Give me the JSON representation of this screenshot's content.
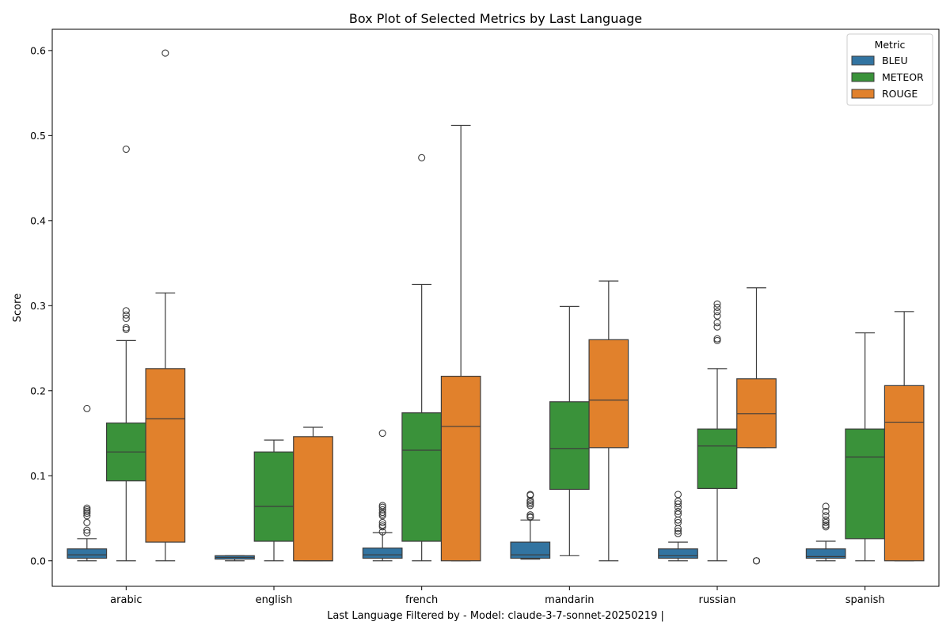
{
  "chart_data": {
    "type": "box",
    "title": "Box Plot of Selected Metrics by Last Language",
    "xlabel": "Last Language Filtered by - Model: claude-3-7-sonnet-20250219 |",
    "ylabel": "Score",
    "ylim": [
      -0.03,
      0.625
    ],
    "yticks": [
      "0.0",
      "0.1",
      "0.2",
      "0.3",
      "0.4",
      "0.5",
      "0.6"
    ],
    "grid": false,
    "legend": {
      "title": "Metric",
      "position": "top-right"
    },
    "categories": [
      "arabic",
      "english",
      "french",
      "mandarin",
      "russian",
      "spanish"
    ],
    "series": [
      {
        "name": "BLEU",
        "color": "#3274a1",
        "boxes": [
          {
            "whislo": 0.0,
            "q1": 0.003,
            "med": 0.007,
            "q3": 0.014,
            "whishi": 0.026,
            "fliers": [
              0.179,
              0.062,
              0.06,
              0.058,
              0.056,
              0.053,
              0.045,
              0.036,
              0.033
            ]
          },
          {
            "whislo": 0.0,
            "q1": 0.002,
            "med": 0.004,
            "q3": 0.006,
            "whishi": 0.006,
            "fliers": []
          },
          {
            "whislo": 0.0,
            "q1": 0.003,
            "med": 0.007,
            "q3": 0.015,
            "whishi": 0.033,
            "fliers": [
              0.15,
              0.065,
              0.063,
              0.06,
              0.057,
              0.055,
              0.053,
              0.045,
              0.042,
              0.04,
              0.034
            ]
          },
          {
            "whislo": 0.002,
            "q1": 0.003,
            "med": 0.007,
            "q3": 0.022,
            "whishi": 0.048,
            "fliers": [
              0.078,
              0.077,
              0.071,
              0.069,
              0.067,
              0.065,
              0.054,
              0.052,
              0.051
            ]
          },
          {
            "whislo": 0.0,
            "q1": 0.003,
            "med": 0.006,
            "q3": 0.014,
            "whishi": 0.022,
            "fliers": [
              0.078,
              0.07,
              0.067,
              0.063,
              0.058,
              0.055,
              0.048,
              0.045,
              0.038,
              0.035,
              0.032
            ]
          },
          {
            "whislo": 0.0,
            "q1": 0.003,
            "med": 0.005,
            "q3": 0.014,
            "whishi": 0.023,
            "fliers": [
              0.064,
              0.058,
              0.053,
              0.048,
              0.045,
              0.042,
              0.04
            ]
          }
        ]
      },
      {
        "name": "METEOR",
        "color": "#3a923a",
        "boxes": [
          {
            "whislo": 0.0,
            "q1": 0.094,
            "med": 0.128,
            "q3": 0.162,
            "whishi": 0.259,
            "fliers": [
              0.484,
              0.294,
              0.289,
              0.285,
              0.274,
              0.272
            ]
          },
          {
            "whislo": 0.0,
            "q1": 0.023,
            "med": 0.064,
            "q3": 0.128,
            "whishi": 0.142,
            "fliers": []
          },
          {
            "whislo": 0.0,
            "q1": 0.023,
            "med": 0.13,
            "q3": 0.174,
            "whishi": 0.325,
            "fliers": [
              0.474
            ]
          },
          {
            "whislo": 0.006,
            "q1": 0.084,
            "med": 0.132,
            "q3": 0.187,
            "whishi": 0.299,
            "fliers": []
          },
          {
            "whislo": 0.0,
            "q1": 0.085,
            "med": 0.135,
            "q3": 0.155,
            "whishi": 0.226,
            "fliers": [
              0.302,
              0.298,
              0.293,
              0.288,
              0.28,
              0.275,
              0.261,
              0.259
            ]
          },
          {
            "whislo": 0.0,
            "q1": 0.026,
            "med": 0.122,
            "q3": 0.155,
            "whishi": 0.268,
            "fliers": []
          }
        ]
      },
      {
        "name": "ROUGE",
        "color": "#e1812c",
        "boxes": [
          {
            "whislo": 0.0,
            "q1": 0.022,
            "med": 0.167,
            "q3": 0.226,
            "whishi": 0.315,
            "fliers": [
              0.597
            ]
          },
          {
            "whislo": 0.0,
            "q1": 0.0,
            "med": 0.0,
            "q3": 0.146,
            "whishi": 0.157,
            "fliers": []
          },
          {
            "whislo": 0.0,
            "q1": 0.0,
            "med": 0.158,
            "q3": 0.217,
            "whishi": 0.512,
            "fliers": []
          },
          {
            "whislo": 0.0,
            "q1": 0.133,
            "med": 0.189,
            "q3": 0.26,
            "whishi": 0.329,
            "fliers": []
          },
          {
            "whislo": 0.133,
            "q1": 0.133,
            "med": 0.173,
            "q3": 0.214,
            "whishi": 0.321,
            "fliers": [
              0.0,
              0.0,
              0.0
            ]
          },
          {
            "whislo": 0.0,
            "q1": 0.0,
            "med": 0.163,
            "q3": 0.206,
            "whishi": 0.293,
            "fliers": []
          }
        ]
      }
    ]
  }
}
